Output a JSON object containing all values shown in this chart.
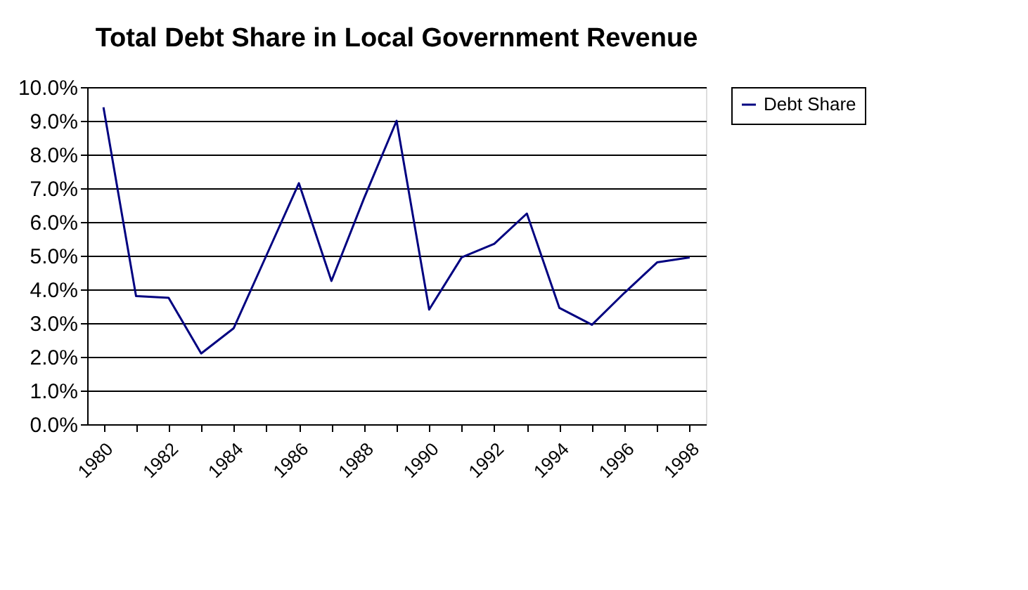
{
  "chart_data": {
    "type": "line",
    "title": "Total Debt Share in Local Government Revenue",
    "categories": [
      "1980",
      null,
      "1982",
      null,
      "1984",
      null,
      "1986",
      null,
      "1988",
      null,
      "1990",
      null,
      "1992",
      null,
      "1994",
      null,
      "1996",
      null,
      "1998"
    ],
    "series": [
      {
        "name": "Debt Share",
        "color": "#000080",
        "values": [
          9.4,
          3.8,
          3.75,
          2.1,
          2.85,
          5.0,
          7.15,
          4.25,
          6.7,
          9.0,
          3.4,
          4.95,
          5.35,
          6.25,
          3.45,
          2.95,
          3.9,
          4.8,
          4.95
        ]
      }
    ],
    "ylim": [
      0,
      10
    ],
    "yticks": [
      {
        "value": 0,
        "label": "0.0%"
      },
      {
        "value": 1,
        "label": "1.0%"
      },
      {
        "value": 2,
        "label": "2.0%"
      },
      {
        "value": 3,
        "label": "3.0%"
      },
      {
        "value": 4,
        "label": "4.0%"
      },
      {
        "value": 5,
        "label": "5.0%"
      },
      {
        "value": 6,
        "label": "6.0%"
      },
      {
        "value": 7,
        "label": "7.0%"
      },
      {
        "value": 8,
        "label": "8.0%"
      },
      {
        "value": 9,
        "label": "9.0%"
      },
      {
        "value": 10,
        "label": "10.0%"
      }
    ],
    "grid": "y",
    "legend": "right",
    "marker": "none",
    "line_style": "solid"
  }
}
